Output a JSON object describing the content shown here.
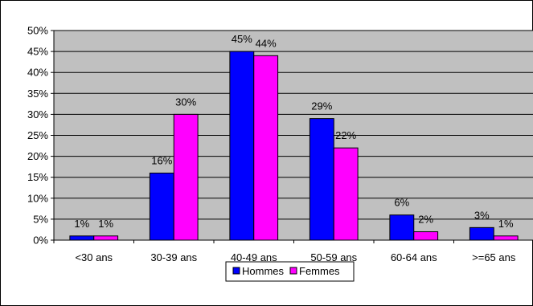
{
  "chart_data": {
    "type": "bar",
    "categories": [
      "<30 ans",
      "30-39 ans",
      "40-49 ans",
      "50-59 ans",
      "60-64 ans",
      ">=65 ans"
    ],
    "series": [
      {
        "name": "Hommes",
        "values": [
          1,
          16,
          45,
          29,
          6,
          3
        ],
        "color": "#0000ff"
      },
      {
        "name": "Femmes",
        "values": [
          1,
          30,
          44,
          22,
          2,
          1
        ],
        "color": "#ff00ff"
      }
    ],
    "value_labels": [
      [
        "1%",
        "16%",
        "45%",
        "29%",
        "6%",
        "3%"
      ],
      [
        "1%",
        "30%",
        "44%",
        "22%",
        "2%",
        "1%"
      ]
    ],
    "y_ticks": [
      "0%",
      "5%",
      "10%",
      "15%",
      "20%",
      "25%",
      "30%",
      "35%",
      "40%",
      "45%",
      "50%"
    ],
    "ylim": [
      0,
      50
    ],
    "title": "",
    "xlabel": "",
    "ylabel": "",
    "grid": true,
    "plot_background": "#c0c0c0",
    "legend": {
      "position": "bottom-center",
      "entries": [
        "Hommes",
        "Femmes"
      ]
    }
  }
}
